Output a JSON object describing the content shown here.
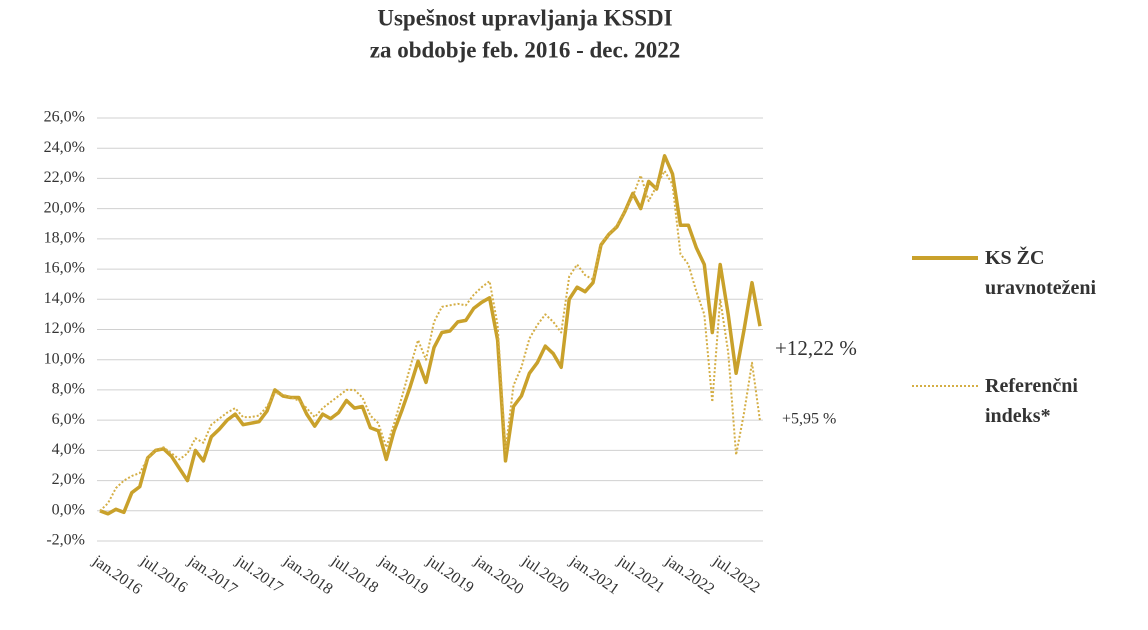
{
  "chart_data": {
    "type": "line",
    "title": [
      "Uspešnost upravljanja KSSDI",
      "za obdobje feb. 2016 - dec. 2022"
    ],
    "categories": [
      "jan.2016",
      null,
      null,
      null,
      null,
      null,
      "jul.2016",
      null,
      null,
      null,
      null,
      null,
      "jan.2017",
      null,
      null,
      null,
      null,
      null,
      "jul.2017",
      null,
      null,
      null,
      null,
      null,
      "jan.2018",
      null,
      null,
      null,
      null,
      null,
      "jul.2018",
      null,
      null,
      null,
      null,
      null,
      "jan.2019",
      null,
      null,
      null,
      null,
      null,
      "jul.2019",
      null,
      null,
      null,
      null,
      null,
      "jan.2020",
      null,
      null,
      null,
      null,
      null,
      "jul.2020",
      null,
      null,
      null,
      null,
      null,
      "jan.2021",
      null,
      null,
      null,
      null,
      null,
      "jul.2021",
      null,
      null,
      null,
      null,
      null,
      "jan.2022",
      null,
      null,
      null,
      null,
      null,
      "jul.2022",
      null,
      null,
      null,
      null,
      null
    ],
    "series": [
      {
        "name": "KS ŽC uravnoteženi",
        "color": "#c9a12b",
        "style": "solid",
        "values": [
          0,
          -0.2,
          0.1,
          -0.1,
          1.2,
          1.6,
          3.5,
          4.0,
          4.1,
          3.6,
          2.8,
          2.0,
          4.0,
          3.3,
          4.9,
          5.4,
          6.0,
          6.4,
          5.7,
          5.8,
          5.9,
          6.6,
          8.0,
          7.6,
          7.5,
          7.5,
          6.4,
          5.6,
          6.4,
          6.1,
          6.5,
          7.3,
          6.8,
          6.9,
          5.5,
          5.3,
          3.4,
          5.3,
          6.7,
          8.2,
          9.9,
          8.5,
          10.8,
          11.8,
          11.9,
          12.5,
          12.6,
          13.4,
          13.8,
          14.1,
          11.3,
          3.3,
          6.9,
          7.6,
          9.1,
          9.8,
          10.9,
          10.4,
          9.5,
          14.0,
          14.8,
          14.5,
          15.1,
          17.6,
          18.3,
          18.8,
          19.8,
          21.0,
          20.0,
          21.8,
          21.3,
          23.5,
          22.3,
          18.9,
          18.9,
          17.4,
          16.3,
          11.8,
          16.3,
          13.0,
          9.1,
          12.0,
          15.1,
          12.22
        ]
      },
      {
        "name": "Referenčni indeks*",
        "color": "#d4ae45",
        "style": "dotted",
        "values": [
          0,
          0.5,
          1.5,
          2.0,
          2.3,
          2.5,
          3.5,
          4.0,
          4.2,
          3.8,
          3.4,
          3.8,
          4.8,
          4.5,
          5.7,
          6.1,
          6.5,
          6.8,
          6.2,
          6.2,
          6.3,
          6.9,
          7.8,
          7.7,
          7.5,
          7.3,
          6.8,
          6.2,
          6.8,
          7.2,
          7.6,
          8.0,
          8.0,
          7.5,
          6.3,
          5.8,
          4.2,
          5.8,
          7.6,
          9.5,
          11.3,
          10.0,
          12.5,
          13.5,
          13.6,
          13.7,
          13.6,
          14.3,
          14.8,
          15.2,
          12.3,
          4.0,
          8.3,
          9.5,
          11.4,
          12.3,
          13.0,
          12.5,
          11.8,
          15.5,
          16.3,
          15.6,
          15.3,
          17.7,
          18.3,
          18.9,
          19.8,
          20.8,
          22.2,
          20.5,
          21.5,
          22.5,
          21.6,
          17.0,
          16.3,
          14.5,
          13.0,
          7.2,
          14.0,
          10.5,
          3.7,
          6.5,
          9.8,
          5.95
        ]
      }
    ],
    "annotations": [
      "+12,22 %",
      "+5,95 %"
    ],
    "ylim": [
      -2,
      26
    ],
    "yticks": [
      {
        "value": -2,
        "label": "-2,0%"
      },
      {
        "value": 0,
        "label": "0,0%"
      },
      {
        "value": 2,
        "label": "2,0%"
      },
      {
        "value": 4,
        "label": "4,0%"
      },
      {
        "value": 6,
        "label": "6,0%"
      },
      {
        "value": 8,
        "label": "8,0%"
      },
      {
        "value": 10,
        "label": "10,0%"
      },
      {
        "value": 12,
        "label": "12,0%"
      },
      {
        "value": 14,
        "label": "14,0%"
      },
      {
        "value": 16,
        "label": "16,0%"
      },
      {
        "value": 18,
        "label": "18,0%"
      },
      {
        "value": 20,
        "label": "20,0%"
      },
      {
        "value": 22,
        "label": "22,0%"
      },
      {
        "value": 24,
        "label": "24,0%"
      },
      {
        "value": 26,
        "label": "26,0%"
      }
    ],
    "grid": true,
    "legend": "right"
  }
}
